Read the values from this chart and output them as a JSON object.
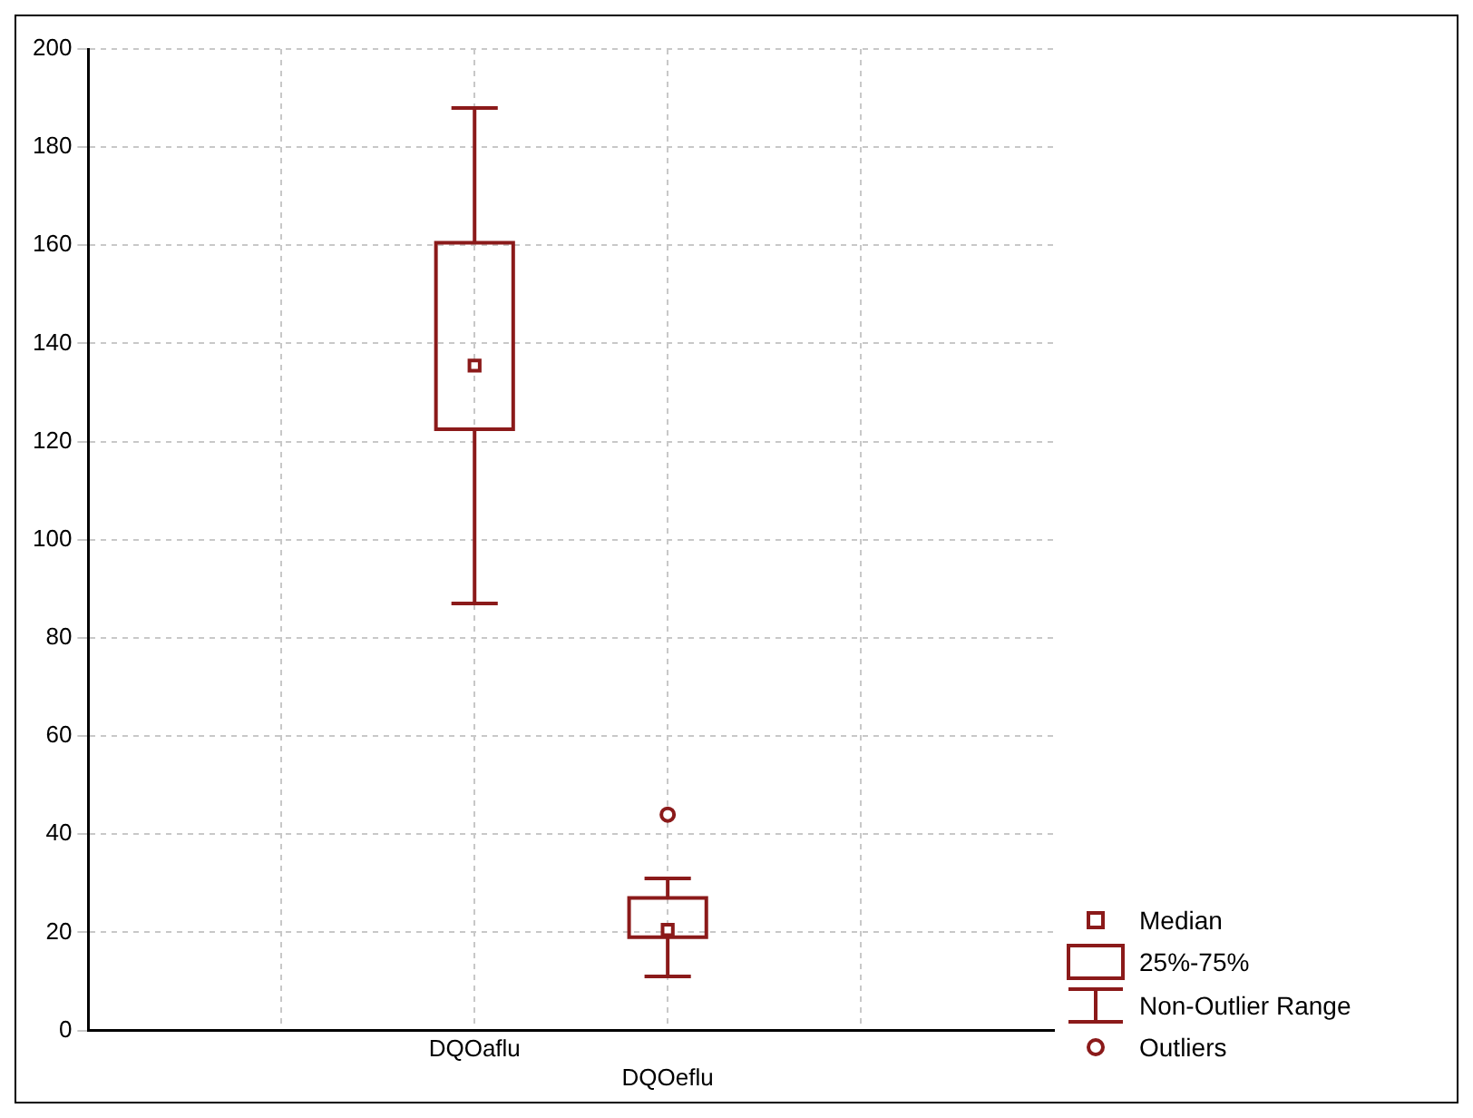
{
  "chart_data": {
    "type": "box",
    "categories": [
      "DQOaflu",
      "DQOeflu"
    ],
    "boxes": [
      {
        "low": 87,
        "q1": 122.5,
        "median": 135.5,
        "q3": 160.5,
        "high": 188
      },
      {
        "low": 11,
        "q1": 19,
        "median": 20.5,
        "q3": 27,
        "high": 31,
        "outliers": [
          44
        ]
      }
    ],
    "color": "#8b1a1a",
    "ylim": [
      0,
      200
    ],
    "yticks": [
      0,
      20,
      40,
      60,
      80,
      100,
      120,
      140,
      160,
      180,
      200
    ],
    "grid": true,
    "annotations": [
      "Median",
      "25%-75%",
      "Non-Outlier Range",
      "Outliers"
    ]
  }
}
